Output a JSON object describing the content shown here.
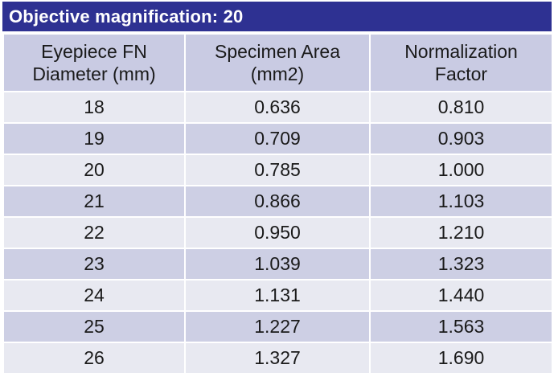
{
  "title": "Objective magnification: 20",
  "colors": {
    "title_bg": "#2e3192",
    "header_bg": "#c9cbe3",
    "row_light": "#e8e9f1",
    "row_dark": "#cdcfe4"
  },
  "table": {
    "headers": [
      [
        "Eyepiece FN",
        "Diameter (mm)"
      ],
      [
        "Specimen Area",
        "(mm2)"
      ],
      [
        "Normalization",
        "Factor"
      ]
    ],
    "rows": [
      [
        "18",
        "0.636",
        "0.810"
      ],
      [
        "19",
        "0.709",
        "0.903"
      ],
      [
        "20",
        "0.785",
        "1.000"
      ],
      [
        "21",
        "0.866",
        "1.103"
      ],
      [
        "22",
        "0.950",
        "1.210"
      ],
      [
        "23",
        "1.039",
        "1.323"
      ],
      [
        "24",
        "1.131",
        "1.440"
      ],
      [
        "25",
        "1.227",
        "1.563"
      ],
      [
        "26",
        "1.327",
        "1.690"
      ]
    ]
  }
}
